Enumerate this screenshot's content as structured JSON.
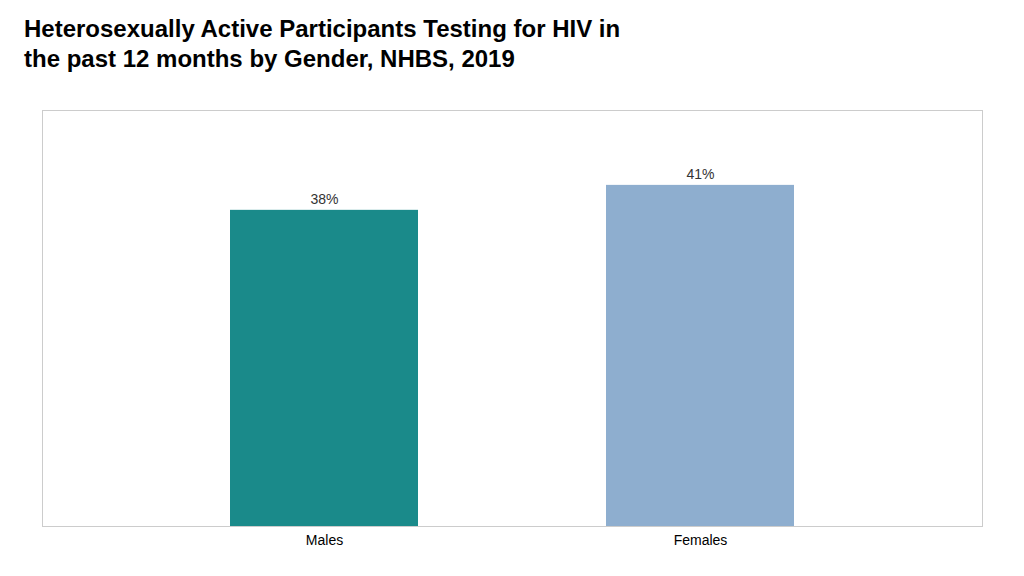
{
  "chart_data": {
    "type": "bar",
    "title": "Heterosexually Active Participants Testing for HIV in\nthe past 12 months by Gender, NHBS, 2019",
    "categories": [
      "Males",
      "Females"
    ],
    "values": [
      38,
      41
    ],
    "value_labels": [
      "38%",
      "41%"
    ],
    "colors": [
      "#1a8a8a",
      "#8eaecf"
    ],
    "ylim": [
      0,
      50
    ],
    "data_labels": true,
    "tick_labels": "x"
  }
}
